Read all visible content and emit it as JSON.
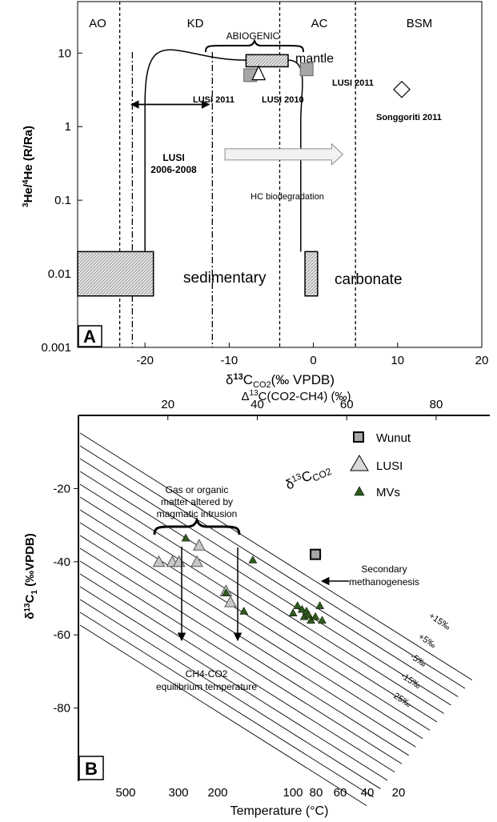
{
  "colors": {
    "ink": "#000000",
    "marker_grey": "#a6a6a6",
    "mv_green": "#2f5a1e",
    "hatch": "#bdbdbd"
  },
  "panel_a": {
    "panel_label": "A",
    "x_label": {
      "pre": "δ",
      "sup": "13",
      "mid": "C",
      "sub": "CO2",
      "post": "(‰ VPDB)"
    },
    "y_label": {
      "sup1": "3",
      "part1": "He/",
      "sup2": "4",
      "part2": "He (R/Ra)"
    },
    "zones": [
      "AO",
      "KD",
      "AC",
      "BSM"
    ],
    "abiogenic": "ABIOGENIC",
    "mantle": "mantle",
    "sedimentary": "sedimentary",
    "carbonate": "carbonate",
    "lusi_range": [
      "LUSI",
      "2006-2008"
    ],
    "hc_arrow": "HC biodegradation",
    "lusi2011_left": "LUSI 2011",
    "lusi2011_right": "LUSI 2011",
    "lusi2010": "LUSI 2010",
    "songgoriti": "Songgoriti 2011"
  },
  "panel_b": {
    "panel_label": "B",
    "top_label": {
      "pre": "Δ",
      "sup": "13",
      "post": "C(CO2-CH4) (‰)"
    },
    "x_label": "Temperature (°C)",
    "y_label": {
      "pre": "δ",
      "sup": "13",
      "post": "C",
      "sub": "1",
      "tail": " (‰VPDB)"
    },
    "legend": [
      "Wunut",
      "LUSI",
      "MVs"
    ],
    "iso_label": {
      "pre": "δ",
      "sup": "13",
      "mid": "C",
      "sub": "CO2"
    },
    "annotation_gas": [
      "Gas or organic",
      "matter altered by",
      "magmatic intrusion"
    ],
    "annotation_secondary": [
      "Secondary",
      "methanogenesis"
    ],
    "annotation_equilibrium": [
      "CH4-CO2",
      "equilibrium temperature"
    ],
    "line_labels": [
      "+15‰",
      "+5‰",
      "-5‰",
      "-15‰",
      "-25‰"
    ]
  },
  "chart_data": [
    {
      "type": "scatter",
      "title": "",
      "xlabel": "δ13C CO2 (‰ VPDB)",
      "ylabel": "3He/4He (R/Ra)",
      "xlim": [
        -28,
        20
      ],
      "ylim": [
        0.001,
        50
      ],
      "y_scale": "log",
      "x_ticks": [
        "-20",
        "-10",
        "0",
        "10",
        "20"
      ],
      "y_ticks": [
        "0.001",
        "0.01",
        "0.1",
        "1",
        "10"
      ],
      "zone_boundaries_x": [
        -23,
        -4,
        5
      ],
      "dashdot_x": [
        -21.5,
        -12
      ],
      "series": [
        {
          "name": "LUSI 2011",
          "marker": "grey-square",
          "points": [
            [
              -7.5,
              5
            ],
            [
              -0.8,
              6
            ]
          ]
        },
        {
          "name": "LUSI 2010",
          "marker": "open-triangle",
          "points": [
            [
              -6.5,
              5.3
            ]
          ]
        },
        {
          "name": "Songgoriti 2011",
          "marker": "open-diamond",
          "points": [
            [
              10.5,
              3.2
            ]
          ]
        }
      ],
      "end_member_boxes": [
        {
          "name": "mantle",
          "x": [
            -8,
            -3
          ],
          "y": [
            6.5,
            9.5
          ]
        },
        {
          "name": "sedimentary",
          "x": [
            -28,
            -19
          ],
          "y": [
            0.005,
            0.02
          ]
        },
        {
          "name": "carbonate",
          "x": [
            -1,
            0.5
          ],
          "y": [
            0.005,
            0.02
          ]
        }
      ],
      "lusi_range_x": [
        -22,
        -12
      ],
      "lusi_range_y": 2,
      "hc_biodegradation_arrow_x": [
        -10.5,
        3.5
      ]
    },
    {
      "type": "scatter",
      "title": "",
      "xlabel": "Temperature (°C)",
      "ylabel": "δ13C1 (‰VPDB)",
      "top_xlabel": "Δ13C(CO2-CH4) (‰)",
      "top_xlim": [
        0,
        92
      ],
      "top_ticks": [
        "20",
        "40",
        "60",
        "80"
      ],
      "x_ticks": [
        "500",
        "300",
        "200",
        "100",
        "80",
        "60",
        "40",
        "20"
      ],
      "ylim": [
        -100,
        0
      ],
      "y_ticks": [
        "-20",
        "-40",
        "-60",
        "-80"
      ],
      "isolines_d13C_CO2": [
        "+15‰",
        "+5‰",
        "-5‰",
        "-15‰",
        "-25‰"
      ],
      "series": [
        {
          "name": "Wunut",
          "marker": "grey-square",
          "points": [
            [
              53,
              -38
            ]
          ]
        },
        {
          "name": "LUSI",
          "marker": "grey-triangle",
          "points": [
            [
              18,
              -40
            ],
            [
              21,
              -40
            ],
            [
              22.5,
              -40
            ],
            [
              26.5,
              -40
            ],
            [
              27,
              -35.5
            ],
            [
              33,
              -48
            ],
            [
              34,
              -51
            ]
          ]
        },
        {
          "name": "MVs",
          "marker": "green-triangle",
          "points": [
            [
              24,
              -33.5
            ],
            [
              33,
              -48.5
            ],
            [
              37,
              -53.5
            ],
            [
              39,
              -39.5
            ],
            [
              48,
              -54
            ],
            [
              49,
              -52
            ],
            [
              50,
              -53
            ],
            [
              50.5,
              -55
            ],
            [
              51,
              -53.5
            ],
            [
              51.5,
              -54.5
            ],
            [
              52,
              -56
            ],
            [
              53,
              -55
            ],
            [
              54,
              -52
            ],
            [
              54.5,
              -56
            ]
          ]
        }
      ]
    }
  ]
}
